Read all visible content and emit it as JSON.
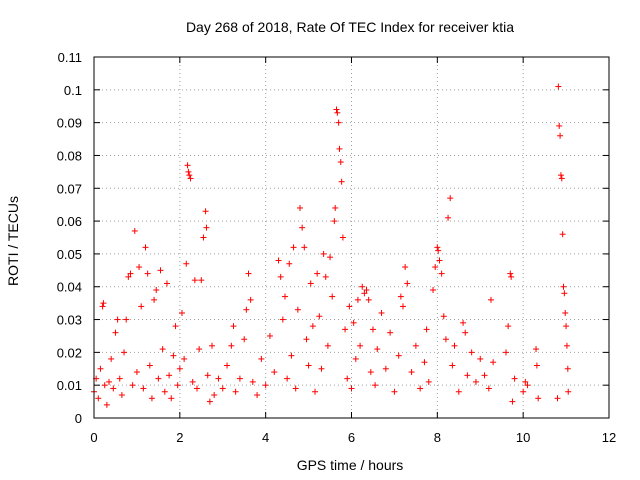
{
  "chart_data": {
    "type": "scatter",
    "title": "Day 268 of 2018, Rate Of TEC Index for receiver ktia",
    "xlabel": "GPS time / hours",
    "ylabel": "ROTI / TECUs",
    "xlim": [
      0,
      12
    ],
    "ylim": [
      0,
      0.11
    ],
    "xticks": [
      0,
      2,
      4,
      6,
      8,
      10,
      12
    ],
    "xtick_labels": [
      "0",
      "2",
      "4",
      "6",
      "8",
      "10",
      "12"
    ],
    "yticks": [
      0,
      0.01,
      0.02,
      0.03,
      0.04,
      0.05,
      0.06,
      0.07,
      0.08,
      0.09,
      0.1,
      0.11
    ],
    "ytick_labels": [
      "0",
      "0.01",
      "0.02",
      "0.03",
      "0.04",
      "0.05",
      "0.06",
      "0.07",
      "0.08",
      "0.09",
      "0.1",
      "0.11"
    ],
    "grid": true,
    "marker": "+",
    "marker_color": "#ff0000",
    "series": [
      {
        "name": "ROTI",
        "points": [
          [
            0.0,
            0.008
          ],
          [
            0.05,
            0.012
          ],
          [
            0.1,
            0.006
          ],
          [
            0.15,
            0.015
          ],
          [
            0.2,
            0.034
          ],
          [
            0.22,
            0.035
          ],
          [
            0.25,
            0.01
          ],
          [
            0.3,
            0.004
          ],
          [
            0.35,
            0.011
          ],
          [
            0.4,
            0.018
          ],
          [
            0.45,
            0.009
          ],
          [
            0.5,
            0.026
          ],
          [
            0.55,
            0.03
          ],
          [
            0.6,
            0.012
          ],
          [
            0.65,
            0.007
          ],
          [
            0.7,
            0.02
          ],
          [
            0.75,
            0.03
          ],
          [
            0.8,
            0.043
          ],
          [
            0.85,
            0.044
          ],
          [
            0.9,
            0.01
          ],
          [
            0.95,
            0.057
          ],
          [
            1.0,
            0.014
          ],
          [
            1.05,
            0.046
          ],
          [
            1.1,
            0.034
          ],
          [
            1.15,
            0.009
          ],
          [
            1.2,
            0.052
          ],
          [
            1.25,
            0.044
          ],
          [
            1.3,
            0.016
          ],
          [
            1.35,
            0.006
          ],
          [
            1.4,
            0.036
          ],
          [
            1.45,
            0.039
          ],
          [
            1.5,
            0.012
          ],
          [
            1.55,
            0.045
          ],
          [
            1.6,
            0.021
          ],
          [
            1.65,
            0.008
          ],
          [
            1.7,
            0.041
          ],
          [
            1.75,
            0.013
          ],
          [
            1.8,
            0.006
          ],
          [
            1.85,
            0.019
          ],
          [
            1.9,
            0.028
          ],
          [
            1.95,
            0.01
          ],
          [
            2.0,
            0.015
          ],
          [
            2.05,
            0.032
          ],
          [
            2.1,
            0.018
          ],
          [
            2.15,
            0.047
          ],
          [
            2.18,
            0.077
          ],
          [
            2.2,
            0.075
          ],
          [
            2.22,
            0.074
          ],
          [
            2.25,
            0.073
          ],
          [
            2.3,
            0.011
          ],
          [
            2.35,
            0.042
          ],
          [
            2.4,
            0.009
          ],
          [
            2.45,
            0.021
          ],
          [
            2.5,
            0.042
          ],
          [
            2.55,
            0.055
          ],
          [
            2.6,
            0.063
          ],
          [
            2.62,
            0.058
          ],
          [
            2.65,
            0.013
          ],
          [
            2.7,
            0.005
          ],
          [
            2.75,
            0.022
          ],
          [
            2.8,
            0.007
          ],
          [
            2.9,
            0.012
          ],
          [
            3.0,
            0.009
          ],
          [
            3.1,
            0.016
          ],
          [
            3.2,
            0.022
          ],
          [
            3.25,
            0.028
          ],
          [
            3.3,
            0.008
          ],
          [
            3.4,
            0.012
          ],
          [
            3.5,
            0.024
          ],
          [
            3.55,
            0.033
          ],
          [
            3.6,
            0.044
          ],
          [
            3.65,
            0.036
          ],
          [
            3.7,
            0.011
          ],
          [
            3.8,
            0.007
          ],
          [
            3.9,
            0.018
          ],
          [
            4.0,
            0.01
          ],
          [
            4.1,
            0.025
          ],
          [
            4.2,
            0.014
          ],
          [
            4.3,
            0.048
          ],
          [
            4.35,
            0.043
          ],
          [
            4.4,
            0.03
          ],
          [
            4.45,
            0.037
          ],
          [
            4.5,
            0.012
          ],
          [
            4.55,
            0.047
          ],
          [
            4.6,
            0.019
          ],
          [
            4.65,
            0.052
          ],
          [
            4.7,
            0.009
          ],
          [
            4.75,
            0.033
          ],
          [
            4.8,
            0.064
          ],
          [
            4.85,
            0.058
          ],
          [
            4.9,
            0.052
          ],
          [
            4.95,
            0.024
          ],
          [
            5.0,
            0.016
          ],
          [
            5.05,
            0.041
          ],
          [
            5.1,
            0.028
          ],
          [
            5.15,
            0.008
          ],
          [
            5.2,
            0.044
          ],
          [
            5.25,
            0.031
          ],
          [
            5.3,
            0.015
          ],
          [
            5.35,
            0.05
          ],
          [
            5.4,
            0.043
          ],
          [
            5.45,
            0.022
          ],
          [
            5.5,
            0.049
          ],
          [
            5.55,
            0.037
          ],
          [
            5.6,
            0.06
          ],
          [
            5.62,
            0.064
          ],
          [
            5.65,
            0.094
          ],
          [
            5.67,
            0.093
          ],
          [
            5.7,
            0.09
          ],
          [
            5.72,
            0.082
          ],
          [
            5.75,
            0.078
          ],
          [
            5.77,
            0.072
          ],
          [
            5.8,
            0.055
          ],
          [
            5.85,
            0.027
          ],
          [
            5.9,
            0.012
          ],
          [
            5.95,
            0.034
          ],
          [
            6.0,
            0.009
          ],
          [
            6.05,
            0.029
          ],
          [
            6.1,
            0.018
          ],
          [
            6.15,
            0.036
          ],
          [
            6.2,
            0.022
          ],
          [
            6.25,
            0.04
          ],
          [
            6.3,
            0.038
          ],
          [
            6.35,
            0.039
          ],
          [
            6.4,
            0.036
          ],
          [
            6.45,
            0.014
          ],
          [
            6.5,
            0.027
          ],
          [
            6.55,
            0.01
          ],
          [
            6.6,
            0.021
          ],
          [
            6.7,
            0.032
          ],
          [
            6.8,
            0.015
          ],
          [
            6.9,
            0.026
          ],
          [
            7.0,
            0.008
          ],
          [
            7.1,
            0.019
          ],
          [
            7.15,
            0.037
          ],
          [
            7.2,
            0.034
          ],
          [
            7.25,
            0.046
          ],
          [
            7.3,
            0.041
          ],
          [
            7.4,
            0.014
          ],
          [
            7.5,
            0.022
          ],
          [
            7.6,
            0.009
          ],
          [
            7.7,
            0.017
          ],
          [
            7.75,
            0.027
          ],
          [
            7.8,
            0.011
          ],
          [
            7.9,
            0.039
          ],
          [
            7.95,
            0.046
          ],
          [
            8.0,
            0.052
          ],
          [
            8.02,
            0.051
          ],
          [
            8.05,
            0.048
          ],
          [
            8.1,
            0.044
          ],
          [
            8.15,
            0.031
          ],
          [
            8.2,
            0.024
          ],
          [
            8.25,
            0.061
          ],
          [
            8.3,
            0.067
          ],
          [
            8.35,
            0.016
          ],
          [
            8.4,
            0.022
          ],
          [
            8.5,
            0.008
          ],
          [
            8.6,
            0.029
          ],
          [
            8.65,
            0.026
          ],
          [
            8.7,
            0.013
          ],
          [
            8.8,
            0.02
          ],
          [
            8.9,
            0.011
          ],
          [
            9.0,
            0.018
          ],
          [
            9.1,
            0.013
          ],
          [
            9.2,
            0.009
          ],
          [
            9.25,
            0.036
          ],
          [
            9.3,
            0.017
          ],
          [
            9.6,
            0.02
          ],
          [
            9.65,
            0.028
          ],
          [
            9.7,
            0.044
          ],
          [
            9.72,
            0.043
          ],
          [
            9.75,
            0.005
          ],
          [
            9.8,
            0.012
          ],
          [
            10.0,
            0.008
          ],
          [
            10.05,
            0.011
          ],
          [
            10.1,
            0.01
          ],
          [
            10.3,
            0.021
          ],
          [
            10.32,
            0.016
          ],
          [
            10.35,
            0.006
          ],
          [
            10.8,
            0.006
          ],
          [
            10.82,
            0.101
          ],
          [
            10.84,
            0.089
          ],
          [
            10.86,
            0.086
          ],
          [
            10.88,
            0.074
          ],
          [
            10.9,
            0.073
          ],
          [
            10.92,
            0.056
          ],
          [
            10.94,
            0.04
          ],
          [
            10.96,
            0.038
          ],
          [
            10.98,
            0.032
          ],
          [
            11.0,
            0.028
          ],
          [
            11.02,
            0.022
          ],
          [
            11.04,
            0.015
          ],
          [
            11.05,
            0.008
          ]
        ]
      }
    ]
  }
}
